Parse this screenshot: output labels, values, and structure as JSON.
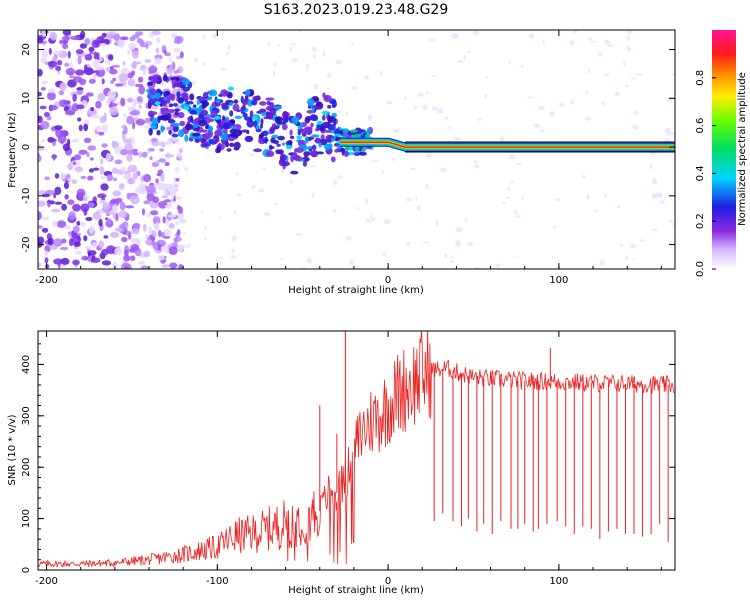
{
  "title": "S163.2023.019.23.48.G29",
  "chart_data": [
    {
      "type": "heatmap",
      "xlabel": "Height of straight line (km)",
      "ylabel": "Frequency (Hz)",
      "xlim": [
        -205,
        168
      ],
      "ylim": [
        -25,
        24
      ],
      "xticks": [
        -200,
        -100,
        0,
        100
      ],
      "yticks": [
        -20,
        -10,
        0,
        10,
        20
      ],
      "colorbar": {
        "label": "Normalized spectral amplitude",
        "range": [
          0,
          1
        ],
        "ticks": [
          0.0,
          0.2,
          0.4,
          0.6,
          0.8
        ]
      },
      "ridge": [
        {
          "x": -140,
          "y": 9
        },
        {
          "x": -120,
          "y": 8
        },
        {
          "x": -100,
          "y": 5
        },
        {
          "x": -80,
          "y": 6
        },
        {
          "x": -65,
          "y": 3
        },
        {
          "x": -55,
          "y": 0
        },
        {
          "x": -45,
          "y": 4
        },
        {
          "x": -35,
          "y": 5
        },
        {
          "x": -28,
          "y": 1
        },
        {
          "x": -20,
          "y": 1
        },
        {
          "x": -10,
          "y": 1
        },
        {
          "x": 0,
          "y": 1
        },
        {
          "x": 10,
          "y": 0
        },
        {
          "x": 168,
          "y": 0
        }
      ]
    },
    {
      "type": "line",
      "xlabel": "Height of straight line (km)",
      "ylabel": "SNR (10 * v/v)",
      "xlim": [
        -205,
        168
      ],
      "ylim": [
        0,
        465
      ],
      "xticks": [
        -200,
        -100,
        0,
        100
      ],
      "yticks": [
        0,
        100,
        200,
        300,
        400
      ],
      "series": [
        {
          "name": "SNR",
          "color": "#ee2222",
          "x": [
            -205,
            -180,
            -160,
            -140,
            -120,
            -100,
            -90,
            -80,
            -70,
            -60,
            -50,
            -40,
            -35,
            -30,
            -25,
            -20,
            -15,
            -10,
            -5,
            0,
            5,
            10,
            15,
            20,
            25,
            30,
            35,
            40,
            50,
            60,
            70,
            80,
            90,
            100,
            110,
            120,
            130,
            140,
            150,
            160,
            168
          ],
          "y": [
            12,
            12,
            14,
            20,
            30,
            45,
            65,
            70,
            80,
            90,
            100,
            115,
            150,
            150,
            180,
            230,
            270,
            290,
            300,
            320,
            340,
            355,
            365,
            380,
            390,
            390,
            392,
            385,
            375,
            372,
            370,
            368,
            367,
            366,
            365,
            364,
            363,
            362,
            362,
            360,
            360
          ]
        }
      ],
      "dips": [
        {
          "x": 27,
          "y": 95
        },
        {
          "x": 32,
          "y": 110
        },
        {
          "x": 38,
          "y": 95
        },
        {
          "x": 43,
          "y": 85
        },
        {
          "x": 47,
          "y": 100
        },
        {
          "x": 52,
          "y": 75
        },
        {
          "x": 56,
          "y": 90
        },
        {
          "x": 61,
          "y": 70
        },
        {
          "x": 66,
          "y": 95
        },
        {
          "x": 72,
          "y": 80
        },
        {
          "x": 76,
          "y": 80
        },
        {
          "x": 80,
          "y": 90
        },
        {
          "x": 85,
          "y": 75
        },
        {
          "x": 88,
          "y": 80
        },
        {
          "x": 93,
          "y": 90
        },
        {
          "x": 99,
          "y": 95
        },
        {
          "x": 104,
          "y": 85
        },
        {
          "x": 109,
          "y": 70
        },
        {
          "x": 114,
          "y": 85
        },
        {
          "x": 119,
          "y": 80
        },
        {
          "x": 124,
          "y": 60
        },
        {
          "x": 129,
          "y": 75
        },
        {
          "x": 134,
          "y": 80
        },
        {
          "x": 139,
          "y": 70
        },
        {
          "x": 144,
          "y": 70
        },
        {
          "x": 149,
          "y": 65
        },
        {
          "x": 154,
          "y": 70
        },
        {
          "x": 159,
          "y": 90
        },
        {
          "x": 164,
          "y": 55
        }
      ],
      "spikes": [
        {
          "x": -25,
          "y": 465
        },
        {
          "x": -40,
          "y": 320
        },
        {
          "x": -30,
          "y": 265
        },
        {
          "x": 95,
          "y": 432
        }
      ]
    }
  ]
}
